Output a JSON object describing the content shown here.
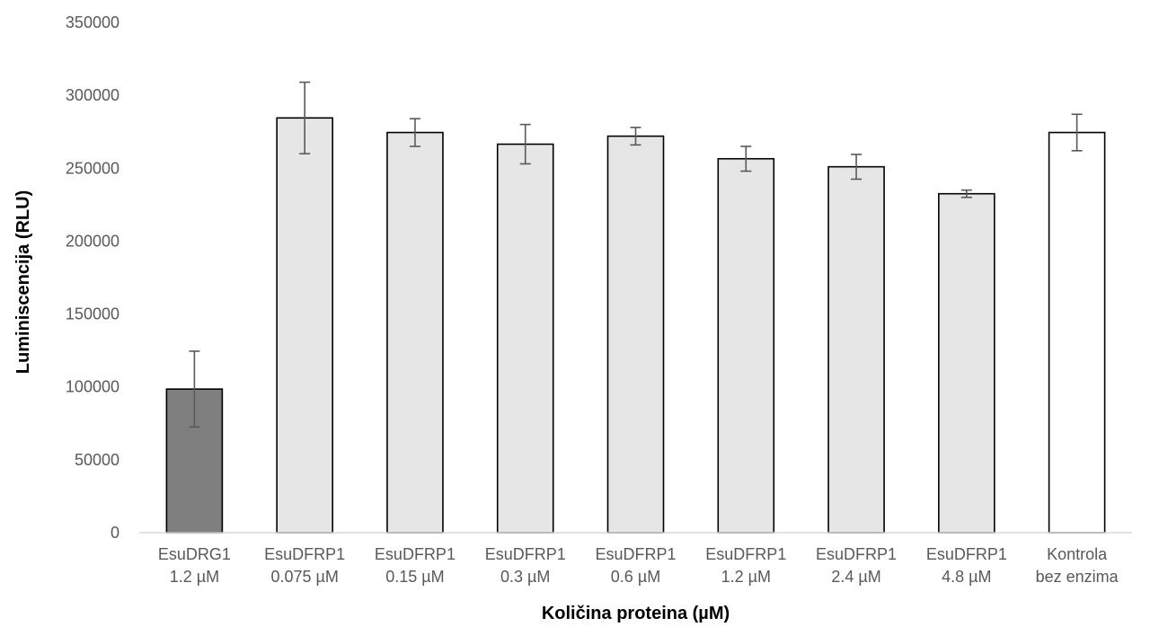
{
  "chart_data": {
    "type": "bar",
    "title": "",
    "xlabel": "Količina proteina (µM)",
    "ylabel": "Luminiscencija (RLU)",
    "ylim": [
      0,
      350000
    ],
    "yticks": [
      0,
      50000,
      100000,
      150000,
      200000,
      250000,
      300000,
      350000
    ],
    "grid": false,
    "legend": "none",
    "categories": [
      [
        "EsuDRG1",
        "1.2 µM"
      ],
      [
        "EsuDFRP1",
        "0.075 µM"
      ],
      [
        "EsuDFRP1",
        "0.15 µM"
      ],
      [
        "EsuDFRP1",
        "0.3 µM"
      ],
      [
        "EsuDFRP1",
        "0.6 µM"
      ],
      [
        "EsuDFRP1",
        "1.2 µM"
      ],
      [
        "EsuDFRP1",
        "2.4 µM"
      ],
      [
        "EsuDFRP1",
        "4.8 µM"
      ],
      [
        "Kontrola",
        "bez enzima"
      ]
    ],
    "values": [
      98500,
      284500,
      274500,
      266500,
      272000,
      256500,
      251000,
      232500,
      274500
    ],
    "errors": [
      26000,
      24500,
      9500,
      13500,
      6000,
      8500,
      8500,
      2500,
      12500
    ],
    "colors": [
      "#7f7f7f",
      "#e7e6e6",
      "#e7e6e6",
      "#e7e6e6",
      "#e7e6e6",
      "#e7e6e6",
      "#e7e6e6",
      "#e7e6e6",
      "#ffffff"
    ]
  }
}
